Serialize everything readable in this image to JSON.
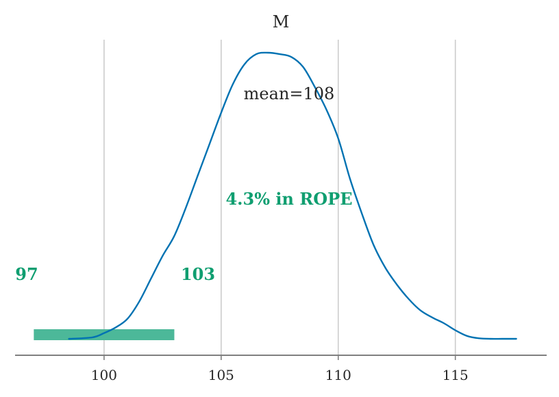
{
  "chart_data": {
    "type": "area",
    "title": "M",
    "xlabel": "",
    "ylabel": "",
    "xlim": [
      96.2,
      118.9
    ],
    "ylim": [
      0,
      1
    ],
    "xticks": [
      100,
      105,
      110,
      115
    ],
    "xtick_labels": [
      "100",
      "105",
      "110",
      "115"
    ],
    "grid": "vertical",
    "series": [
      {
        "x": [
          98.5,
          99.5,
          100.0,
          100.5,
          101.0,
          101.5,
          102.0,
          102.5,
          103.0,
          103.5,
          104.0,
          104.5,
          105.0,
          105.5,
          106.0,
          106.5,
          107.0,
          107.5,
          108.0,
          108.5,
          109.0,
          109.5,
          110.0,
          110.5,
          111.0,
          111.5,
          112.0,
          112.5,
          113.0,
          113.5,
          114.0,
          114.5,
          115.0,
          115.5,
          116.0,
          116.5,
          117.0,
          117.6
        ],
        "y": [
          0.0,
          0.005,
          0.02,
          0.04,
          0.07,
          0.13,
          0.21,
          0.29,
          0.36,
          0.46,
          0.57,
          0.68,
          0.79,
          0.89,
          0.96,
          0.995,
          1.0,
          0.995,
          0.985,
          0.95,
          0.88,
          0.8,
          0.7,
          0.56,
          0.44,
          0.33,
          0.25,
          0.19,
          0.14,
          0.1,
          0.075,
          0.055,
          0.03,
          0.01,
          0.002,
          0.0,
          0.0,
          0.0
        ]
      }
    ],
    "point_estimate": {
      "text": "mean=108"
    },
    "rope": {
      "low": 97,
      "high": 103,
      "low_label": "97",
      "high_label": "103",
      "text": "4.3% in ROPE",
      "color": "#4cb899",
      "label_color": "#0f9e70"
    },
    "line_color": "#0072b2",
    "grid_color": "#cccccc",
    "axis_color": "#7f7f7f",
    "text_color": "#262626"
  }
}
